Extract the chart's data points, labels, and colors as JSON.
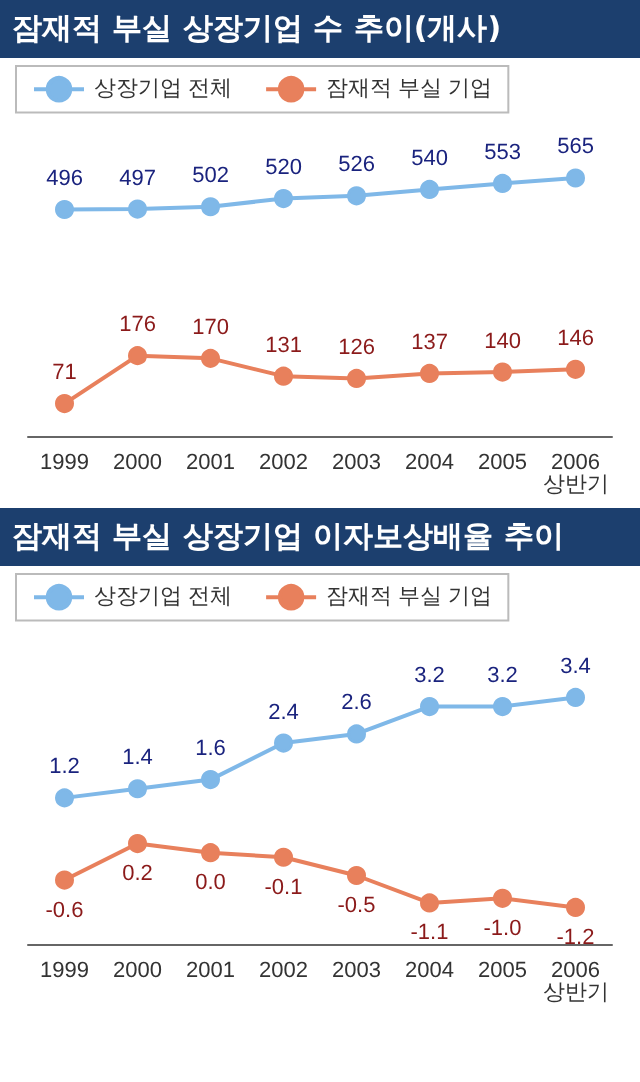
{
  "chart_data": [
    {
      "type": "line",
      "title": "잠재적 부실 상장기업 수 추이(개사)",
      "categories": [
        "1999",
        "2000",
        "2001",
        "2002",
        "2003",
        "2004",
        "2005",
        "2006\n상반기"
      ],
      "series": [
        {
          "name": "상장기업 전체",
          "color": "#7fb8e8",
          "values": [
            496,
            497,
            502,
            520,
            526,
            540,
            553,
            565
          ]
        },
        {
          "name": "잠재적 부실 기업",
          "color": "#e8805c",
          "values": [
            71,
            176,
            170,
            131,
            126,
            137,
            140,
            146
          ]
        }
      ],
      "data_labels": true,
      "legend": "top left",
      "marker": "circle"
    },
    {
      "type": "line",
      "title": "잠재적 부실 상장기업 이자보상배율 추이",
      "categories": [
        "1999",
        "2000",
        "2001",
        "2002",
        "2003",
        "2004",
        "2005",
        "2006\n상반기"
      ],
      "series": [
        {
          "name": "상장기업 전체",
          "color": "#7fb8e8",
          "values": [
            1.2,
            1.4,
            1.6,
            2.4,
            2.6,
            3.2,
            3.2,
            3.4
          ],
          "value_labels": [
            "1.2",
            "1.4",
            "1.6",
            "2.4",
            "2.6",
            "3.2",
            "3.2",
            "3.4"
          ]
        },
        {
          "name": "잠재적 부실 기업",
          "color": "#e8805c",
          "values": [
            -0.6,
            0.2,
            0.0,
            -0.1,
            -0.5,
            -1.1,
            -1.0,
            -1.2
          ],
          "value_labels": [
            "-0.6",
            "0.2",
            "0.0",
            "-0.1",
            "-0.5",
            "-1.1",
            "-1.0",
            "-1.2"
          ]
        }
      ],
      "legend": "top left",
      "marker": "circle"
    }
  ]
}
